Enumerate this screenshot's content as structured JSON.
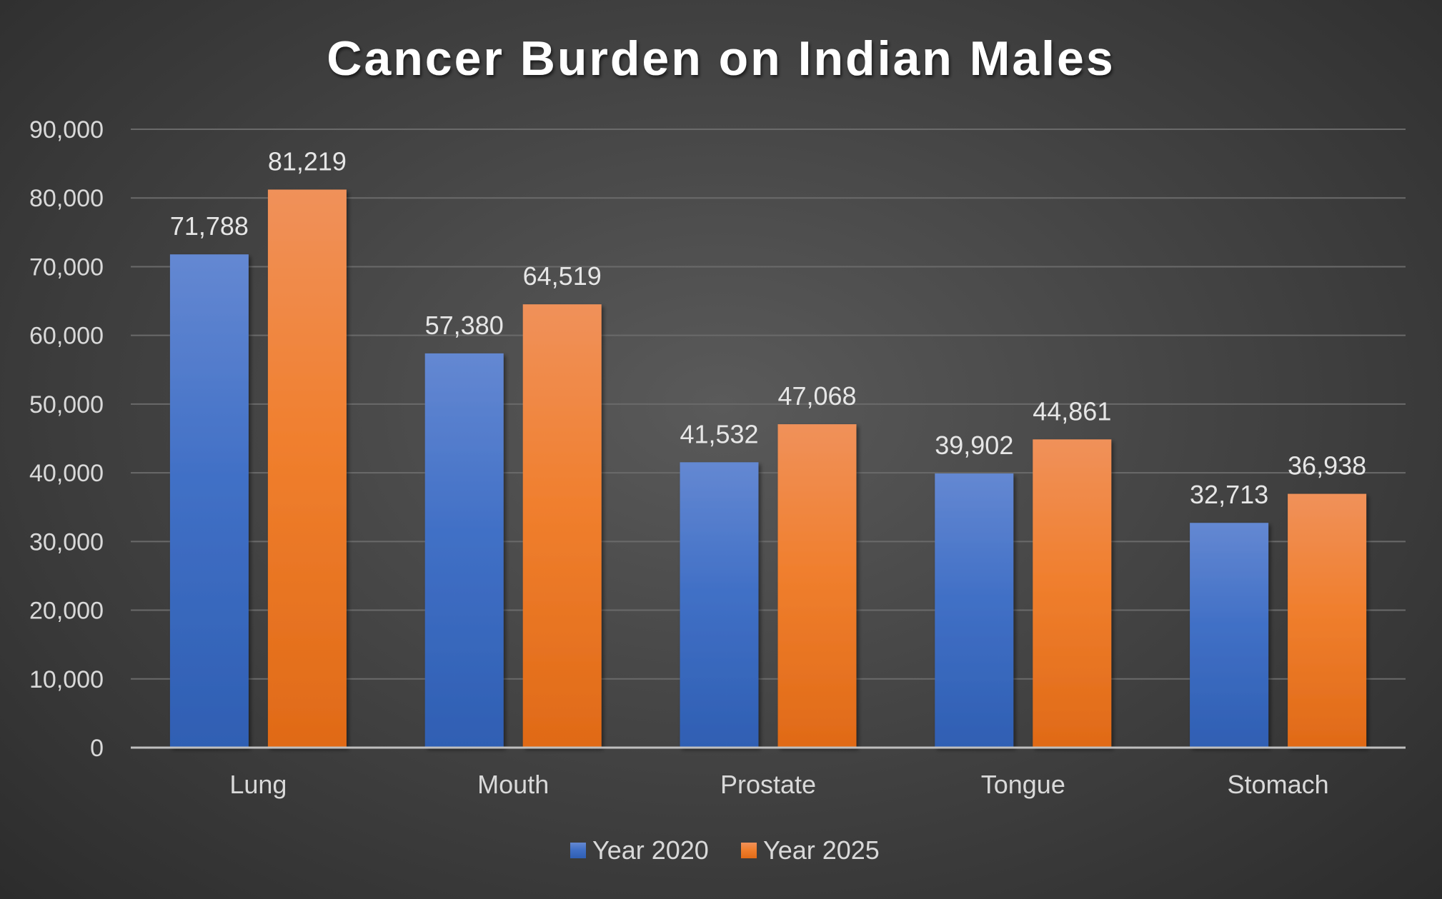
{
  "chart_data": {
    "type": "bar",
    "title": "Cancer Burden on Indian Males",
    "xlabel": "",
    "ylabel": "",
    "categories": [
      "Lung",
      "Mouth",
      "Prostate",
      "Tongue",
      "Stomach"
    ],
    "series": [
      {
        "name": "Year 2020",
        "values": [
          71788,
          57380,
          41532,
          39902,
          32713
        ],
        "labels": [
          "71,788",
          "57,380",
          "41,532",
          "39,902",
          "32,713"
        ],
        "color": "#4472c4"
      },
      {
        "name": "Year 2025",
        "values": [
          81219,
          64519,
          47068,
          44861,
          36938
        ],
        "labels": [
          "81,219",
          "64,519",
          "47,068",
          "44,861",
          "36,938"
        ],
        "color": "#ed7d31"
      }
    ],
    "ylim": [
      0,
      90000
    ],
    "yticks": [
      0,
      10000,
      20000,
      30000,
      40000,
      50000,
      60000,
      70000,
      80000,
      90000
    ],
    "ytick_labels": [
      "0",
      "10,000",
      "20,000",
      "30,000",
      "40,000",
      "50,000",
      "60,000",
      "70,000",
      "80,000",
      "90,000"
    ],
    "grid": true,
    "legend_position": "bottom"
  }
}
